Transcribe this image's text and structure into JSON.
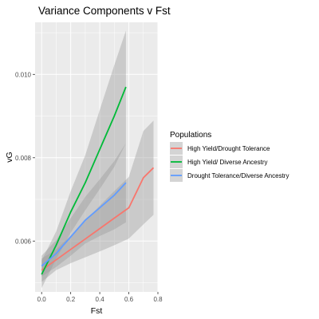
{
  "chart_data": {
    "type": "line",
    "title": "Variance Components v Fst",
    "xlabel": "Fst",
    "ylabel": "vG",
    "xlim": [
      -0.045,
      0.8
    ],
    "ylim": [
      0.00478,
      0.01125
    ],
    "x_ticks": [
      0.0,
      0.2,
      0.4,
      0.6,
      0.8
    ],
    "x_tick_labels": [
      "0.0",
      "0.2",
      "0.4",
      "0.6",
      "0.8"
    ],
    "y_ticks": [
      0.006,
      0.008,
      0.01
    ],
    "y_tick_labels": [
      "0.006",
      "0.008",
      "0.010"
    ],
    "grid": true,
    "legend": {
      "title": "Populations",
      "position": "right"
    },
    "series": [
      {
        "name": "High Yield/Drought Tolerance",
        "color": "#f8766d",
        "x": [
          0.0,
          0.1,
          0.2,
          0.3,
          0.4,
          0.5,
          0.6,
          0.7,
          0.77
        ],
        "y": [
          0.0053,
          0.00555,
          0.0058,
          0.00605,
          0.0063,
          0.00655,
          0.0068,
          0.00752,
          0.00776
        ],
        "ci_lower": [
          0.00502,
          0.0053,
          0.00547,
          0.00561,
          0.00575,
          0.0059,
          0.00606,
          0.0064,
          0.00663
        ],
        "ci_upper": [
          0.00558,
          0.0058,
          0.00613,
          0.00649,
          0.00685,
          0.0072,
          0.00754,
          0.00864,
          0.00889
        ]
      },
      {
        "name": "High Yield/ Diverse Ancestry",
        "color": "#00ba38",
        "x": [
          0.0,
          0.1,
          0.2,
          0.3,
          0.4,
          0.5,
          0.58
        ],
        "y": [
          0.0052,
          0.0059,
          0.0067,
          0.0074,
          0.0082,
          0.009,
          0.0097
        ],
        "ci_lower": [
          0.00487,
          0.00557,
          0.0062,
          0.00674,
          0.00725,
          0.00778,
          0.00835
        ],
        "ci_upper": [
          0.00553,
          0.00623,
          0.0072,
          0.00806,
          0.00915,
          0.01022,
          0.01105
        ]
      },
      {
        "name": "Drought Tolerance/Diverse Ancestry",
        "color": "#619cff",
        "x": [
          0.0,
          0.1,
          0.2,
          0.3,
          0.4,
          0.5,
          0.58
        ],
        "y": [
          0.0054,
          0.0057,
          0.0061,
          0.0065,
          0.0068,
          0.0071,
          0.0074
        ],
        "ci_lower": [
          0.00515,
          0.00538,
          0.00565,
          0.00594,
          0.00612,
          0.00628,
          0.00645
        ],
        "ci_upper": [
          0.00565,
          0.00602,
          0.00655,
          0.00706,
          0.00748,
          0.00792,
          0.00835
        ]
      }
    ]
  }
}
